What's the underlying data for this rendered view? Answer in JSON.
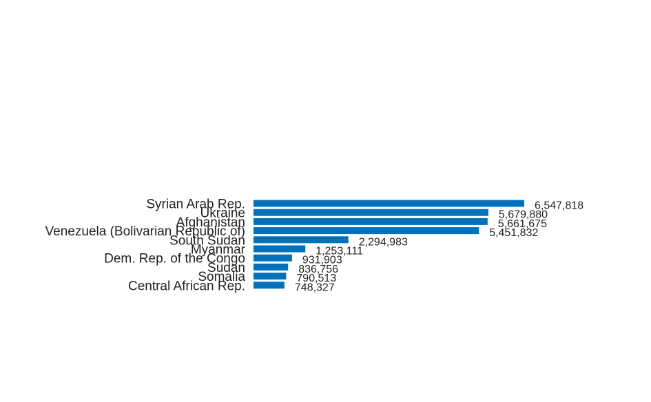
{
  "chart_data": {
    "type": "bar",
    "orientation": "horizontal",
    "title": "",
    "xlabel": "",
    "ylabel": "",
    "categories": [
      "Syrian Arab Rep.",
      "Ukraine",
      "Afghanistan",
      "Venezuela (Bolivarian Republic of)",
      "South Sudan",
      "Myanmar",
      "Dem. Rep. of the Congo",
      "Sudan",
      "Somalia",
      "Central African Rep."
    ],
    "values": [
      6547818,
      5679880,
      5661675,
      5451832,
      2294983,
      1253111,
      931903,
      836756,
      790513,
      748327
    ],
    "value_labels": [
      "6,547,818",
      "5,679,880",
      "5,661,675",
      "5,451,832",
      "2,294,983",
      "1,253,111",
      "931,903",
      "836,756",
      "790,513",
      "748,327"
    ],
    "xlim": [
      0,
      6547818
    ],
    "grid": false,
    "legend": "none",
    "bar_color": "#0072bc"
  }
}
